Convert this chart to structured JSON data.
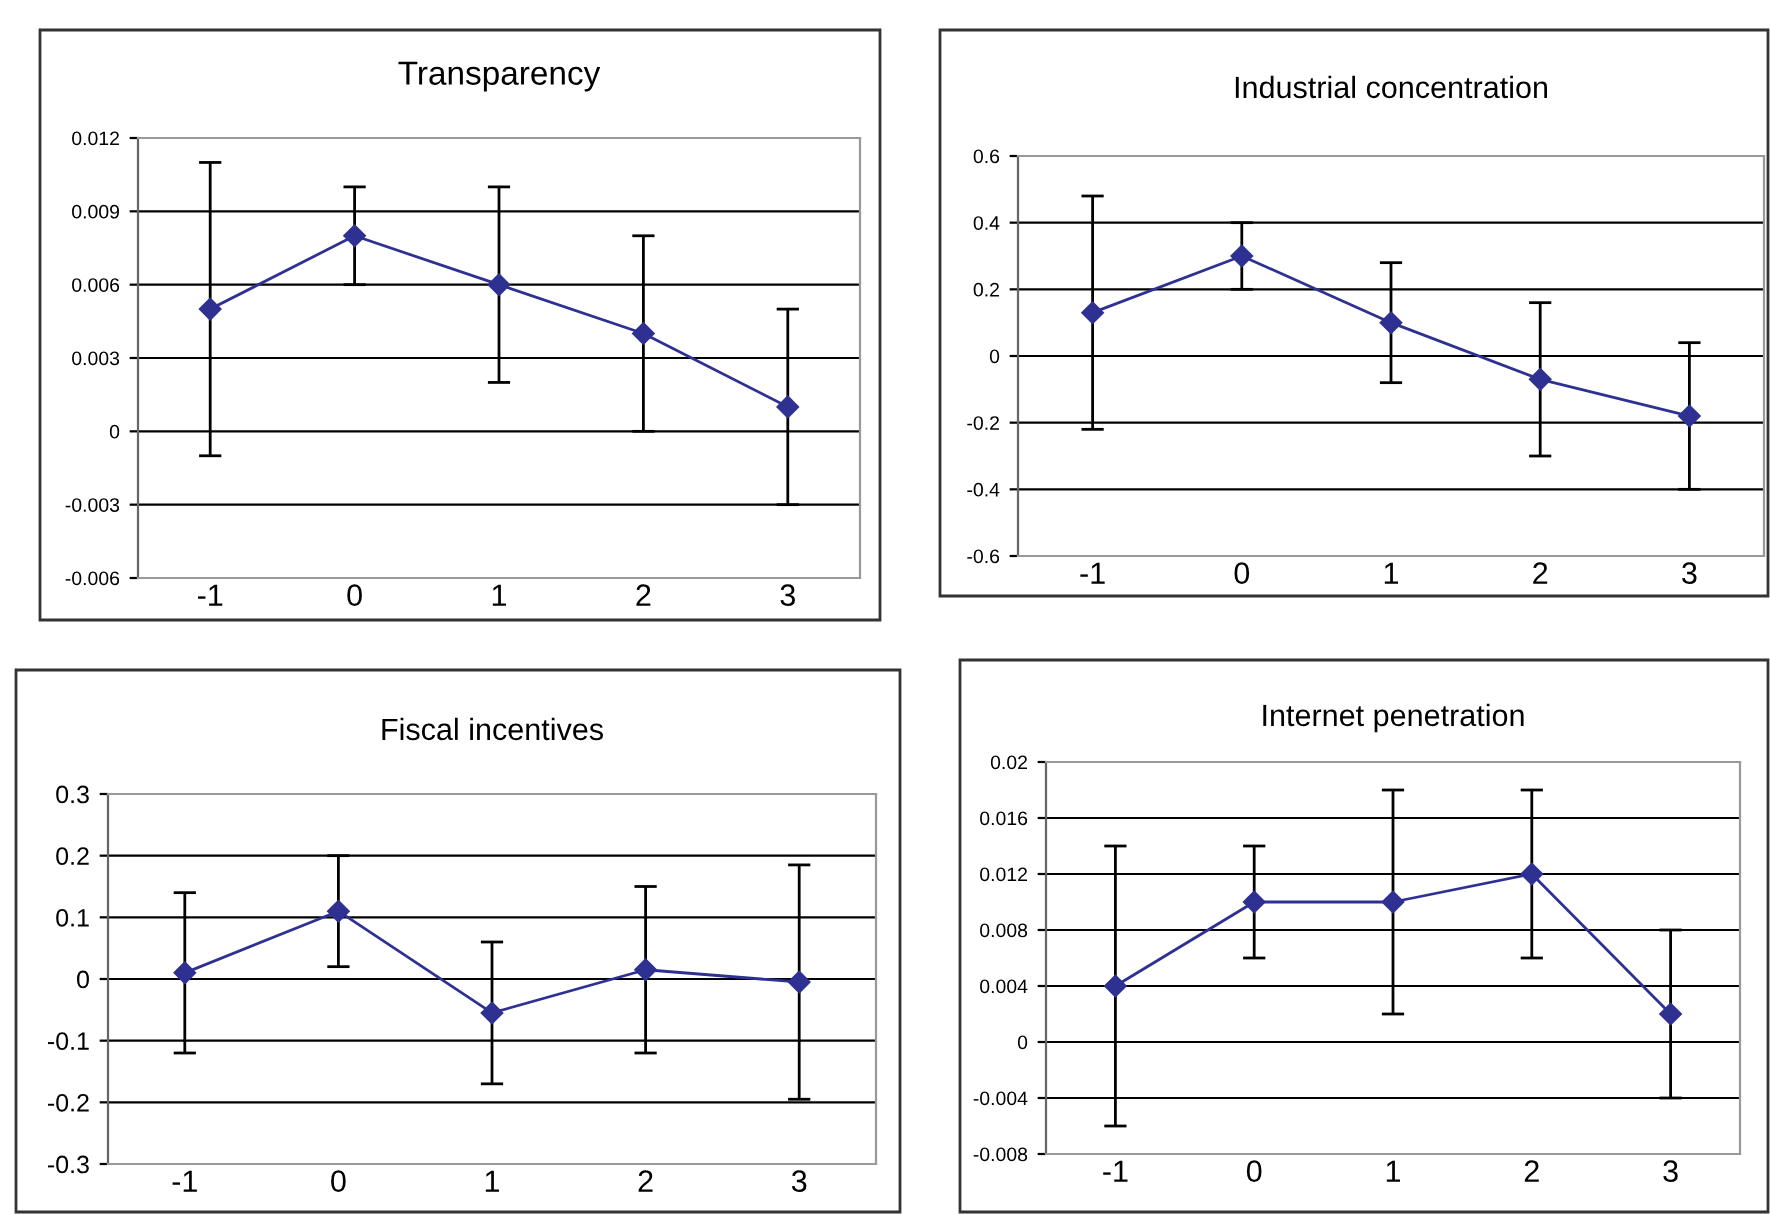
{
  "chart_data": [
    {
      "type": "line",
      "title": "Transparency",
      "categories": [
        "-1",
        "0",
        "1",
        "2",
        "3"
      ],
      "series": [
        {
          "color": "#2e3192",
          "values": [
            0.005,
            0.008,
            0.006,
            0.004,
            0.001
          ],
          "errors": [
            0.006,
            0.002,
            0.004,
            0.004,
            0.004
          ]
        }
      ],
      "ylim": [
        -0.006,
        0.012
      ],
      "yticks": [
        -0.006,
        -0.003,
        0,
        0.003,
        0.006,
        0.009,
        0.012
      ],
      "grid": "y",
      "marker": "diamond",
      "line_style": "solid",
      "legend": false
    },
    {
      "type": "line",
      "title": "Industrial concentration",
      "categories": [
        "-1",
        "0",
        "1",
        "2",
        "3"
      ],
      "series": [
        {
          "color": "#2e3192",
          "values": [
            0.13,
            0.3,
            0.1,
            -0.07,
            -0.18
          ],
          "errors": [
            0.35,
            0.1,
            0.18,
            0.23,
            0.22
          ]
        }
      ],
      "ylim": [
        -0.6,
        0.6
      ],
      "yticks": [
        -0.6,
        -0.4,
        -0.2,
        0,
        0.2,
        0.4,
        0.6
      ],
      "grid": "y",
      "marker": "diamond",
      "line_style": "solid",
      "legend": false
    },
    {
      "type": "line",
      "title": "Fiscal incentives",
      "categories": [
        "-1",
        "0",
        "1",
        "2",
        "3"
      ],
      "series": [
        {
          "color": "#2e3192",
          "values": [
            0.01,
            0.11,
            -0.055,
            0.015,
            -0.005
          ],
          "errors": [
            0.13,
            0.09,
            0.115,
            0.135,
            0.19
          ]
        }
      ],
      "ylim": [
        -0.3,
        0.3
      ],
      "yticks": [
        -0.3,
        -0.2,
        -0.1,
        0,
        0.1,
        0.2,
        0.3
      ],
      "grid": "y",
      "marker": "diamond",
      "line_style": "solid",
      "legend": false
    },
    {
      "type": "line",
      "title": "Internet penetration",
      "categories": [
        "-1",
        "0",
        "1",
        "2",
        "3"
      ],
      "series": [
        {
          "color": "#2e3192",
          "values": [
            0.004,
            0.01,
            0.01,
            0.012,
            0.002
          ],
          "errors": [
            0.01,
            0.004,
            0.008,
            0.006,
            0.006
          ]
        }
      ],
      "ylim": [
        -0.008,
        0.02
      ],
      "yticks": [
        -0.008,
        -0.004,
        0,
        0.004,
        0.008,
        0.012,
        0.016,
        0.02
      ],
      "grid": "y",
      "marker": "diamond",
      "line_style": "solid",
      "legend": false
    }
  ]
}
